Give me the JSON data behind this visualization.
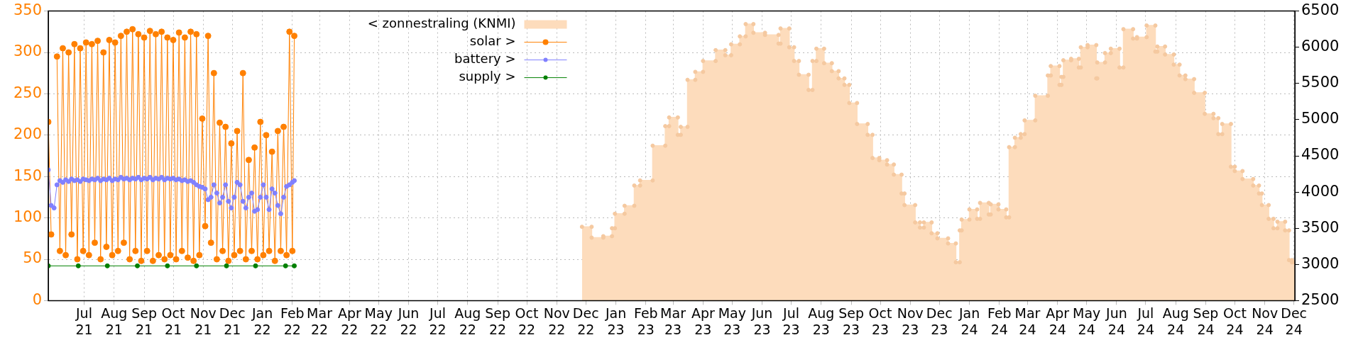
{
  "chart_data": {
    "type": "line",
    "marker": "circle",
    "grid": true,
    "legend": "top left",
    "xlim": [
      "2021-05-25",
      "2024-12-02"
    ],
    "ylim": [
      0,
      350
    ],
    "yticks": [
      0,
      50,
      100,
      150,
      200,
      250,
      300,
      350
    ],
    "y2lim": [
      2500,
      6500
    ],
    "y2ticks": [
      2500,
      3000,
      3500,
      4000,
      4500,
      5000,
      5500,
      6000,
      6500
    ],
    "xticks": [
      {
        "value": "2021-07-01",
        "label": "Jul\n21"
      },
      {
        "value": "2021-08-01",
        "label": "Aug\n21"
      },
      {
        "value": "2021-09-01",
        "label": "Sep\n21"
      },
      {
        "value": "2021-10-01",
        "label": "Oct\n21"
      },
      {
        "value": "2021-11-01",
        "label": "Nov\n21"
      },
      {
        "value": "2021-12-01",
        "label": "Dec\n21"
      },
      {
        "value": "2022-01-01",
        "label": "Jan\n22"
      },
      {
        "value": "2022-02-01",
        "label": "Feb\n22"
      },
      {
        "value": "2022-03-01",
        "label": "Mar\n22"
      },
      {
        "value": "2022-04-01",
        "label": "Apr\n22"
      },
      {
        "value": "2022-05-01",
        "label": "May\n22"
      },
      {
        "value": "2022-06-01",
        "label": "Jun\n22"
      },
      {
        "value": "2022-07-01",
        "label": "Jul\n22"
      },
      {
        "value": "2022-08-01",
        "label": "Aug\n22"
      },
      {
        "value": "2022-09-01",
        "label": "Sep\n22"
      },
      {
        "value": "2022-10-01",
        "label": "Oct\n22"
      },
      {
        "value": "2022-11-01",
        "label": "Nov\n22"
      },
      {
        "value": "2022-12-01",
        "label": "Dec\n22"
      },
      {
        "value": "2023-01-01",
        "label": "Jan\n23"
      },
      {
        "value": "2023-02-01",
        "label": "Feb\n23"
      },
      {
        "value": "2023-03-01",
        "label": "Mar\n23"
      },
      {
        "value": "2023-04-01",
        "label": "Apr\n23"
      },
      {
        "value": "2023-05-01",
        "label": "May\n23"
      },
      {
        "value": "2023-06-01",
        "label": "Jun\n23"
      },
      {
        "value": "2023-07-01",
        "label": "Jul\n23"
      },
      {
        "value": "2023-08-01",
        "label": "Aug\n23"
      },
      {
        "value": "2023-09-01",
        "label": "Sep\n23"
      },
      {
        "value": "2023-10-01",
        "label": "Oct\n23"
      },
      {
        "value": "2023-11-01",
        "label": "Nov\n23"
      },
      {
        "value": "2023-12-01",
        "label": "Dec\n23"
      },
      {
        "value": "2024-01-01",
        "label": "Jan\n24"
      },
      {
        "value": "2024-02-01",
        "label": "Feb\n24"
      },
      {
        "value": "2024-03-01",
        "label": "Mar\n24"
      },
      {
        "value": "2024-04-01",
        "label": "Apr\n24"
      },
      {
        "value": "2024-05-01",
        "label": "May\n24"
      },
      {
        "value": "2024-06-01",
        "label": "Jun\n24"
      },
      {
        "value": "2024-07-01",
        "label": "Jul\n24"
      },
      {
        "value": "2024-08-01",
        "label": "Aug\n24"
      },
      {
        "value": "2024-09-01",
        "label": "Sep\n24"
      },
      {
        "value": "2024-10-01",
        "label": "Oct\n24"
      },
      {
        "value": "2024-11-01",
        "label": "Nov\n24"
      },
      {
        "value": "2024-12-01",
        "label": "Dec\n24"
      }
    ],
    "x": [
      "2021-05-25",
      "2021-05-28",
      "2021-05-31",
      "2021-06-03",
      "2021-06-06",
      "2021-06-09",
      "2021-06-12",
      "2021-06-15",
      "2021-06-18",
      "2021-06-21",
      "2021-06-24",
      "2021-06-27",
      "2021-06-30",
      "2021-07-03",
      "2021-07-06",
      "2021-07-09",
      "2021-07-12",
      "2021-07-15",
      "2021-07-18",
      "2021-07-21",
      "2021-07-24",
      "2021-07-27",
      "2021-07-30",
      "2021-08-02",
      "2021-08-05",
      "2021-08-08",
      "2021-08-11",
      "2021-08-14",
      "2021-08-17",
      "2021-08-20",
      "2021-08-23",
      "2021-08-26",
      "2021-08-29",
      "2021-09-01",
      "2021-09-04",
      "2021-09-07",
      "2021-09-10",
      "2021-09-13",
      "2021-09-16",
      "2021-09-19",
      "2021-09-22",
      "2021-09-25",
      "2021-09-28",
      "2021-10-01",
      "2021-10-04",
      "2021-10-07",
      "2021-10-10",
      "2021-10-13",
      "2021-10-16",
      "2021-10-19",
      "2021-10-22",
      "2021-10-25",
      "2021-10-28",
      "2021-10-31",
      "2021-11-03",
      "2021-11-06",
      "2021-11-09",
      "2021-11-12",
      "2021-11-15",
      "2021-11-18",
      "2021-11-21",
      "2021-11-24",
      "2021-11-27",
      "2021-11-30",
      "2021-12-03",
      "2021-12-06",
      "2021-12-09",
      "2021-12-12",
      "2021-12-15",
      "2021-12-18",
      "2021-12-21",
      "2021-12-24",
      "2021-12-27",
      "2021-12-30",
      "2022-01-02",
      "2022-01-05",
      "2022-01-08",
      "2022-01-11",
      "2022-01-14",
      "2022-01-17",
      "2022-01-20",
      "2022-01-23",
      "2022-01-26",
      "2022-01-29",
      "2022-02-01",
      "2022-02-03"
    ],
    "series": [
      {
        "name": "< zonnestraling (KNMI)",
        "type": "area",
        "axis": "y2",
        "color": "#fddcbc",
        "x": [
          "2022-11-27",
          "2022-12-07",
          "2022-12-07",
          "2022-12-19",
          "2022-12-19",
          "2022-12-28",
          "2022-12-28",
          "2022-12-31",
          "2022-12-31",
          "2023-01-10",
          "2023-01-10",
          "2023-01-20",
          "2023-01-20",
          "2023-01-26",
          "2023-01-26",
          "2023-02-08",
          "2023-02-08",
          "2023-02-21",
          "2023-02-21",
          "2023-02-25",
          "2023-02-25",
          "2023-03-06",
          "2023-03-06",
          "2023-03-09",
          "2023-03-09",
          "2023-03-16",
          "2023-03-16",
          "2023-03-24",
          "2023-03-24",
          "2023-04-01",
          "2023-04-01",
          "2023-04-14",
          "2023-04-14",
          "2023-04-24",
          "2023-04-24",
          "2023-04-30",
          "2023-04-30",
          "2023-05-09",
          "2023-05-09",
          "2023-05-15",
          "2023-05-15",
          "2023-05-23",
          "2023-05-23",
          "2023-06-04",
          "2023-06-04",
          "2023-06-18",
          "2023-06-18",
          "2023-06-20",
          "2023-06-20",
          "2023-06-29",
          "2023-06-29",
          "2023-07-04",
          "2023-07-04",
          "2023-07-09",
          "2023-07-09",
          "2023-07-19",
          "2023-07-19",
          "2023-07-23",
          "2023-07-23",
          "2023-07-27",
          "2023-07-27",
          "2023-08-04",
          "2023-08-04",
          "2023-08-12",
          "2023-08-12",
          "2023-08-19",
          "2023-08-19",
          "2023-08-25",
          "2023-08-25",
          "2023-08-30",
          "2023-08-30",
          "2023-09-07",
          "2023-09-07",
          "2023-09-18",
          "2023-09-18",
          "2023-09-23",
          "2023-09-23",
          "2023-09-30",
          "2023-09-30",
          "2023-10-08",
          "2023-10-08",
          "2023-10-15",
          "2023-10-15",
          "2023-10-23",
          "2023-10-23",
          "2023-10-26",
          "2023-10-26",
          "2023-11-06",
          "2023-11-06",
          "2023-11-11",
          "2023-11-11",
          "2023-11-15",
          "2023-11-15",
          "2023-11-23",
          "2023-11-23",
          "2023-11-29",
          "2023-11-29",
          "2023-12-10",
          "2023-12-10",
          "2023-12-18",
          "2023-12-18",
          "2023-12-22",
          "2023-12-22",
          "2023-12-24",
          "2023-12-24",
          "2024-01-01",
          "2024-01-01",
          "2024-01-09",
          "2024-01-09",
          "2024-01-12",
          "2024-01-12",
          "2024-01-21",
          "2024-01-21",
          "2024-01-23",
          "2024-01-23",
          "2024-01-31",
          "2024-01-31",
          "2024-02-08",
          "2024-02-08",
          "2024-02-11",
          "2024-02-11",
          "2024-02-17",
          "2024-02-17",
          "2024-02-23",
          "2024-02-23",
          "2024-02-27",
          "2024-02-27",
          "2024-03-09",
          "2024-03-09",
          "2024-03-22",
          "2024-03-22",
          "2024-03-25",
          "2024-03-25",
          "2024-04-03",
          "2024-04-03",
          "2024-04-05",
          "2024-04-05",
          "2024-04-07",
          "2024-04-07",
          "2024-04-15",
          "2024-04-15",
          "2024-04-23",
          "2024-04-23",
          "2024-04-25",
          "2024-04-25",
          "2024-05-02",
          "2024-05-02",
          "2024-05-11",
          "2024-05-11",
          "2024-05-12",
          "2024-05-12",
          "2024-05-20",
          "2024-05-20",
          "2024-05-26",
          "2024-05-26",
          "2024-06-04",
          "2024-06-04",
          "2024-06-08",
          "2024-06-08",
          "2024-06-18",
          "2024-06-18",
          "2024-06-22",
          "2024-06-22",
          "2024-07-02",
          "2024-07-02",
          "2024-07-11",
          "2024-07-11",
          "2024-07-13",
          "2024-07-13",
          "2024-07-21",
          "2024-07-21",
          "2024-07-30",
          "2024-07-30",
          "2024-08-05",
          "2024-08-05",
          "2024-08-11",
          "2024-08-11",
          "2024-08-20",
          "2024-08-20",
          "2024-08-31",
          "2024-08-31",
          "2024-09-09",
          "2024-09-09",
          "2024-09-14",
          "2024-09-14",
          "2024-09-18",
          "2024-09-18",
          "2024-09-27",
          "2024-09-27",
          "2024-10-01",
          "2024-10-01",
          "2024-10-09",
          "2024-10-09",
          "2024-10-20",
          "2024-10-20",
          "2024-10-26",
          "2024-10-26",
          "2024-10-29",
          "2024-10-29",
          "2024-11-05",
          "2024-11-05",
          "2024-11-10",
          "2024-11-10",
          "2024-11-14",
          "2024-11-14",
          "2024-11-22",
          "2024-11-22",
          "2024-11-26",
          "2024-11-26",
          "2024-11-29",
          "2024-11-29",
          "2024-12-02"
        ],
        "values": [
          3520,
          3520,
          3370,
          3370,
          3390,
          3390,
          3500,
          3500,
          3700,
          3700,
          3810,
          3810,
          4090,
          4090,
          4160,
          4160,
          4640,
          4640,
          4910,
          4910,
          5030,
          5030,
          4790,
          4790,
          4900,
          4900,
          5550,
          5550,
          5660,
          5660,
          5810,
          5810,
          5960,
          5960,
          5890,
          5890,
          6040,
          6040,
          6150,
          6150,
          6320,
          6320,
          6200,
          6200,
          6170,
          6170,
          6050,
          6050,
          6260,
          6260,
          6000,
          6000,
          5810,
          5810,
          5620,
          5620,
          5410,
          5410,
          5810,
          5810,
          5980,
          5980,
          5780,
          5780,
          5670,
          5670,
          5570,
          5570,
          5480,
          5480,
          5230,
          5230,
          4940,
          4940,
          4790,
          4790,
          4470,
          4470,
          4440,
          4440,
          4380,
          4380,
          4240,
          4240,
          3980,
          3980,
          3820,
          3820,
          3580,
          3580,
          3510,
          3510,
          3580,
          3580,
          3430,
          3430,
          3360,
          3360,
          3290,
          3290,
          3030,
          3030,
          3470,
          3470,
          3620,
          3620,
          3760,
          3760,
          3630,
          3630,
          3850,
          3850,
          3690,
          3690,
          3830,
          3830,
          3760,
          3760,
          3650,
          3650,
          4620,
          4620,
          4750,
          4750,
          4800,
          4800,
          4990,
          4990,
          5330,
          5330,
          5610,
          5610,
          5740,
          5740,
          5480,
          5480,
          5590,
          5590,
          5820,
          5820,
          5840,
          5840,
          5720,
          5720,
          6000,
          6000,
          6030,
          6030,
          5570,
          5570,
          5790,
          5790,
          5920,
          5920,
          5980,
          5980,
          5720,
          5720,
          6250,
          6250,
          6120,
          6120,
          6140,
          6140,
          6300,
          6300,
          5940,
          5940,
          6010,
          6010,
          5900,
          5900,
          5760,
          5760,
          5610,
          5610,
          5560,
          5560,
          5370,
          5370,
          5080,
          5080,
          5020,
          5020,
          4800,
          4800,
          4940,
          4940,
          4350,
          4350,
          4290,
          4290,
          4180,
          4180,
          4090,
          4090,
          3980,
          3980,
          3820,
          3820,
          3630,
          3630,
          3500,
          3500,
          3590,
          3590,
          3470,
          3470,
          3060,
          3060,
          3030,
          3030
        ]
      },
      {
        "name": "solar >",
        "color": "#ff8000",
        "values": [
          216,
          80,
          null,
          295,
          60,
          305,
          55,
          300,
          80,
          310,
          50,
          305,
          60,
          312,
          55,
          310,
          70,
          314,
          50,
          300,
          65,
          315,
          55,
          312,
          60,
          320,
          70,
          325,
          50,
          328,
          60,
          322,
          48,
          318,
          60,
          326,
          48,
          322,
          55,
          325,
          50,
          318,
          55,
          315,
          50,
          324,
          60,
          318,
          52,
          325,
          48,
          322,
          55,
          220,
          90,
          320,
          70,
          275,
          50,
          215,
          60,
          210,
          48,
          190,
          55,
          205,
          60,
          275,
          50,
          170,
          60,
          185,
          50,
          216,
          55,
          200,
          60,
          180,
          48,
          205,
          60,
          210,
          55,
          325,
          60,
          320
        ]
      },
      {
        "name": "battery >",
        "color": "#8080ff",
        "values": [
          158,
          115,
          112,
          140,
          145,
          143,
          146,
          144,
          147,
          145,
          146,
          144,
          147,
          146,
          145,
          147,
          146,
          148,
          145,
          147,
          146,
          148,
          145,
          147,
          146,
          149,
          147,
          148,
          146,
          148,
          147,
          149,
          146,
          148,
          147,
          149,
          146,
          148,
          147,
          149,
          146,
          148,
          147,
          148,
          146,
          147,
          145,
          146,
          144,
          145,
          143,
          140,
          138,
          137,
          135,
          122,
          125,
          140,
          130,
          118,
          125,
          140,
          120,
          112,
          125,
          143,
          140,
          120,
          112,
          125,
          130,
          108,
          110,
          125,
          140,
          125,
          110,
          135,
          130,
          115,
          105,
          125,
          138,
          140,
          143,
          145
        ]
      },
      {
        "name": "supply >",
        "color": "#008000",
        "x": [
          "2021-05-25",
          "2021-06-25",
          "2021-07-25",
          "2021-08-25",
          "2021-09-25",
          "2021-10-25",
          "2021-11-25",
          "2021-12-25",
          "2022-01-25",
          "2022-02-03"
        ],
        "values": [
          42,
          42,
          42,
          42,
          42,
          42,
          42,
          42,
          42,
          42
        ]
      }
    ]
  }
}
